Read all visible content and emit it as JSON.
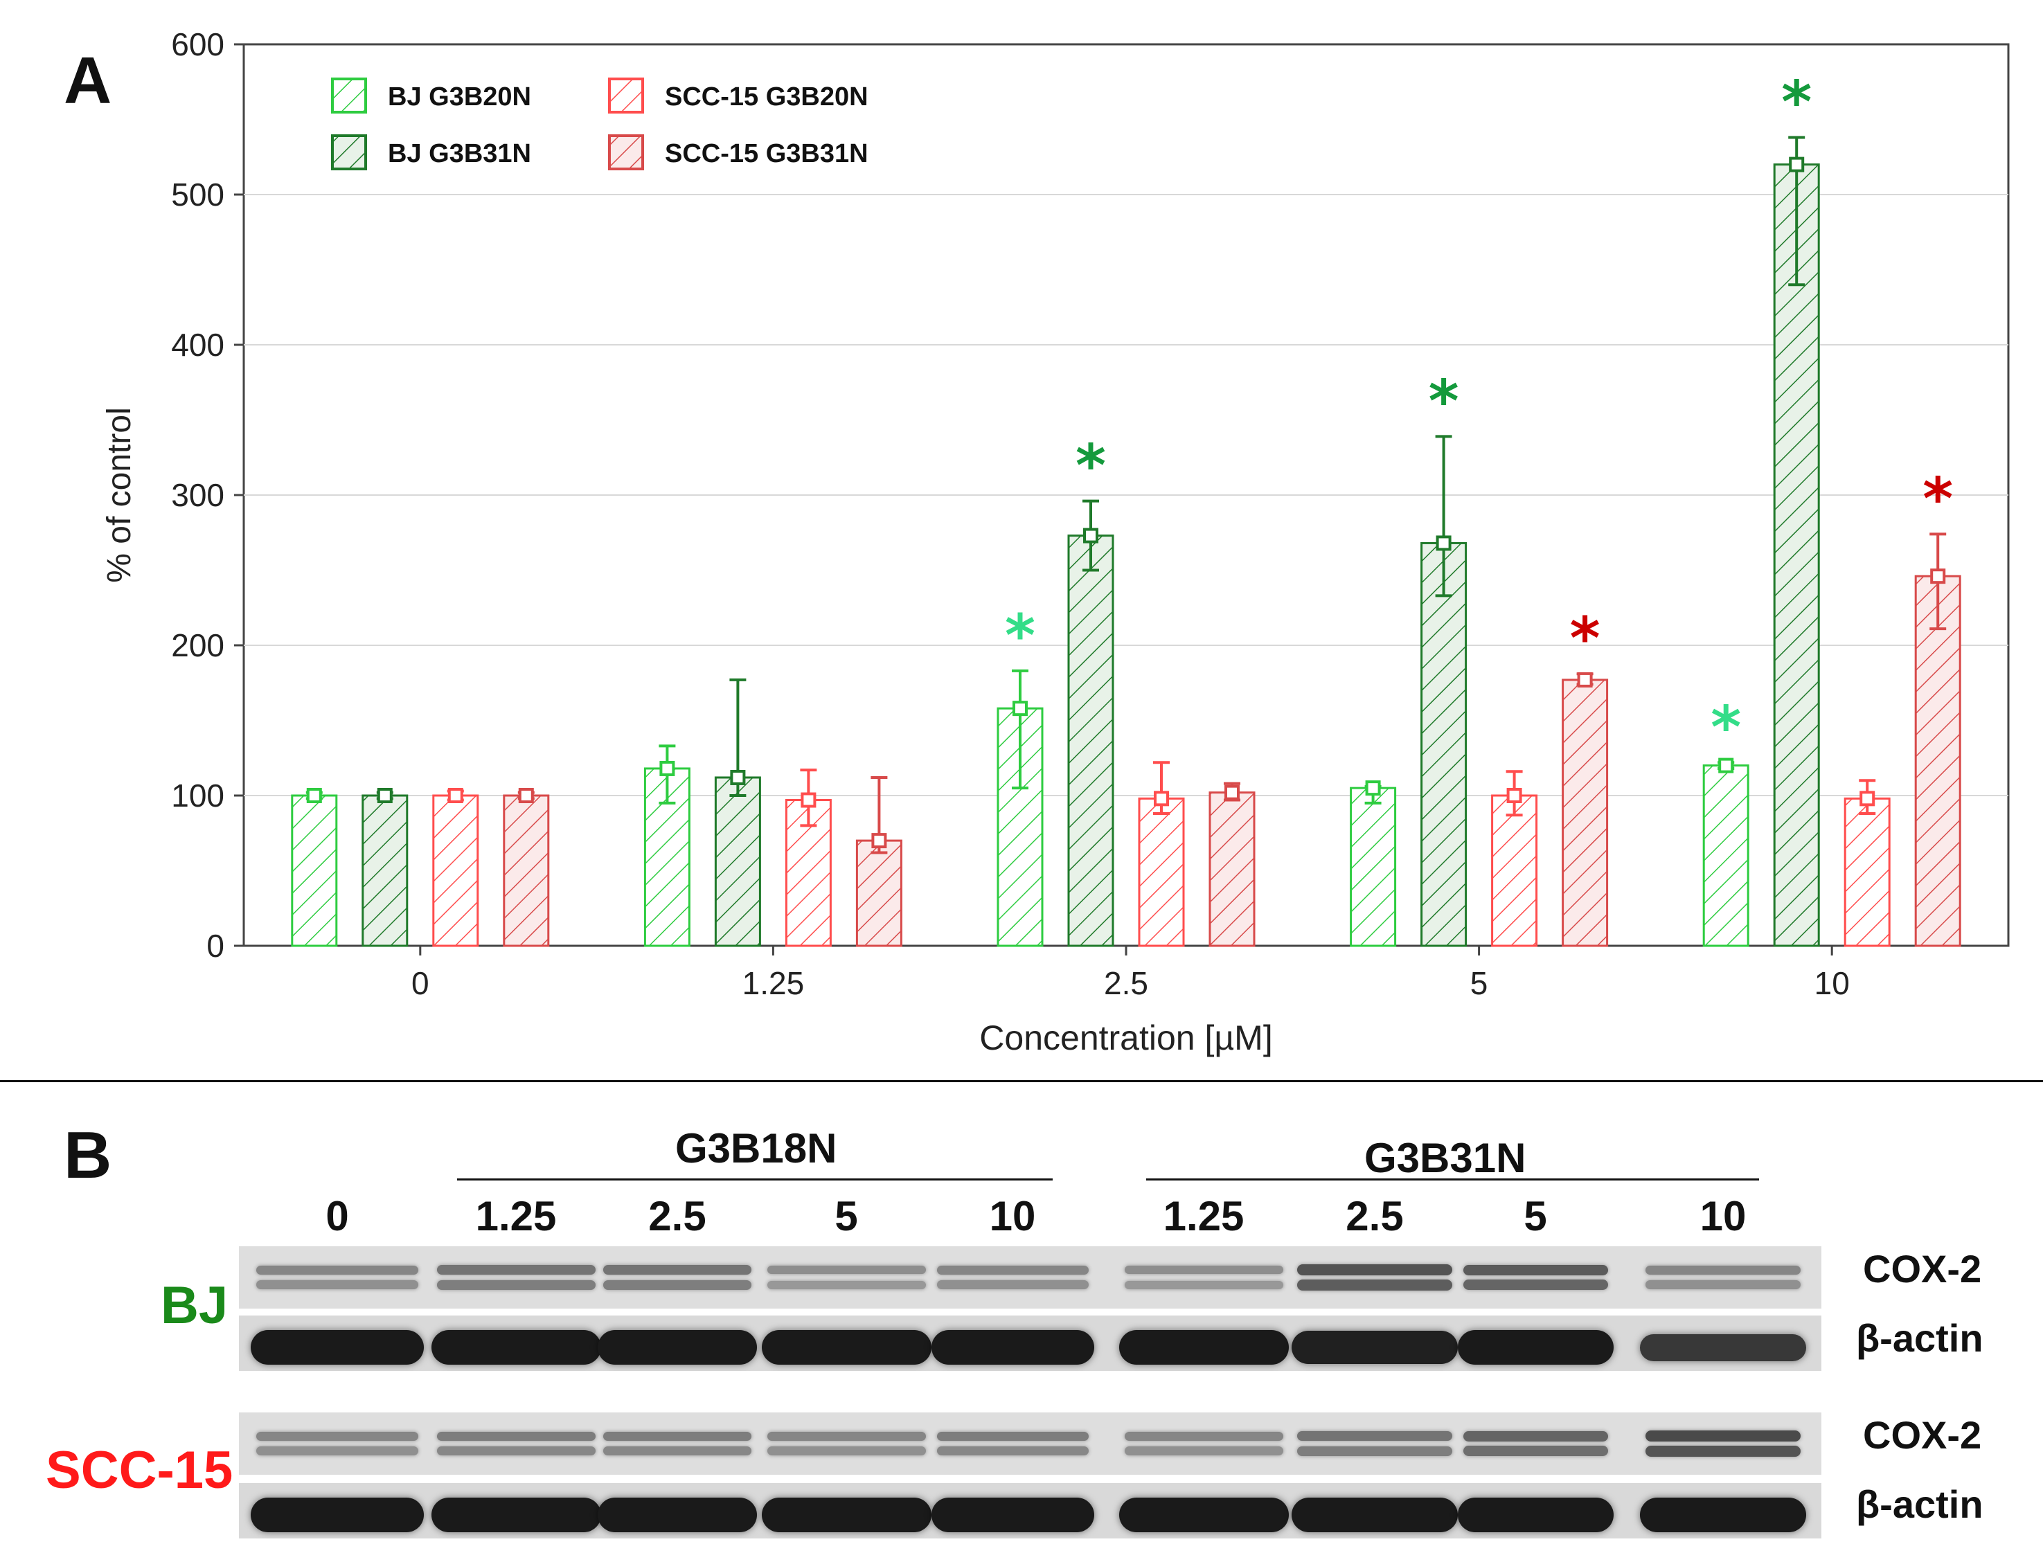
{
  "panel_a": {
    "letter": "A"
  },
  "panel_b": {
    "letter": "B"
  },
  "chart_data": {
    "type": "bar",
    "title": "",
    "xlabel": "Concentration [µM]",
    "ylabel": "% of control",
    "ylim": [
      0,
      600
    ],
    "yticks": [
      "0",
      "100",
      "200",
      "300",
      "400",
      "500",
      "600"
    ],
    "categories": [
      "0",
      "1.25",
      "2.5",
      "5",
      "10"
    ],
    "legend_position": "top-left",
    "grid": true,
    "series": [
      {
        "name": "BJ G3B20N",
        "color": "#2ecc40",
        "hatch_color": "#2ecc40",
        "fill": "#ffffff",
        "values": [
          100,
          118,
          158,
          105,
          120
        ],
        "err_low": [
          98,
          95,
          105,
          95,
          118
        ],
        "err_high": [
          102,
          133,
          183,
          106,
          122
        ],
        "significant": [
          false,
          false,
          true,
          false,
          true
        ],
        "star_color": "#33dd88"
      },
      {
        "name": "BJ G3B31N",
        "color": "#1f7a2a",
        "hatch_color": "#1f7a2a",
        "fill": "#e8f2e8",
        "values": [
          100,
          112,
          273,
          268,
          520
        ],
        "err_low": [
          98,
          100,
          250,
          233,
          440
        ],
        "err_high": [
          102,
          177,
          296,
          339,
          538
        ],
        "significant": [
          false,
          false,
          true,
          true,
          true
        ],
        "star_color": "#149a3c"
      },
      {
        "name": "SCC-15 G3B20N",
        "color": "#ff4d4d",
        "hatch_color": "#ff4d4d",
        "fill": "#ffffff",
        "values": [
          100,
          97,
          98,
          100,
          98
        ],
        "err_low": [
          97,
          80,
          88,
          87,
          88
        ],
        "err_high": [
          103,
          117,
          122,
          116,
          110
        ],
        "significant": [
          false,
          false,
          false,
          false,
          false
        ],
        "star_color": "#cc0000"
      },
      {
        "name": "SCC-15 G3B31N",
        "color": "#d84a4a",
        "hatch_color": "#d84a4a",
        "fill": "#fbeaea",
        "values": [
          100,
          70,
          102,
          177,
          246
        ],
        "err_low": [
          98,
          62,
          97,
          174,
          211
        ],
        "err_high": [
          102,
          112,
          108,
          181,
          274
        ],
        "significant": [
          false,
          false,
          false,
          true,
          true
        ],
        "star_color": "#cc0000"
      }
    ],
    "significance_marker": "*"
  },
  "blot": {
    "groups": [
      {
        "label": "G3B18N"
      },
      {
        "label": "G3B31N"
      }
    ],
    "lanes": [
      "0",
      "1.25",
      "2.5",
      "5",
      "10",
      "1.25",
      "2.5",
      "5",
      "10"
    ],
    "cell_lines": [
      {
        "name": "BJ",
        "color": "#1a8a1a"
      },
      {
        "name": "SCC-15",
        "color": "#ff1a1a"
      }
    ],
    "proteins": {
      "target": "COX-2",
      "loading": "β-actin"
    },
    "rows": [
      {
        "cell": "BJ",
        "protein": "COX-2",
        "intensity": [
          0.45,
          0.55,
          0.55,
          0.4,
          0.45,
          0.4,
          0.75,
          0.7,
          0.45
        ]
      },
      {
        "cell": "BJ",
        "protein": "β-actin",
        "intensity": [
          0.95,
          0.95,
          0.95,
          0.95,
          0.95,
          0.95,
          0.9,
          0.95,
          0.7
        ]
      },
      {
        "cell": "SCC-15",
        "protein": "COX-2",
        "intensity": [
          0.45,
          0.5,
          0.5,
          0.45,
          0.5,
          0.45,
          0.55,
          0.65,
          0.8
        ]
      },
      {
        "cell": "SCC-15",
        "protein": "β-actin",
        "intensity": [
          0.95,
          0.95,
          0.95,
          0.95,
          0.95,
          0.95,
          0.95,
          0.95,
          0.95
        ]
      }
    ]
  }
}
